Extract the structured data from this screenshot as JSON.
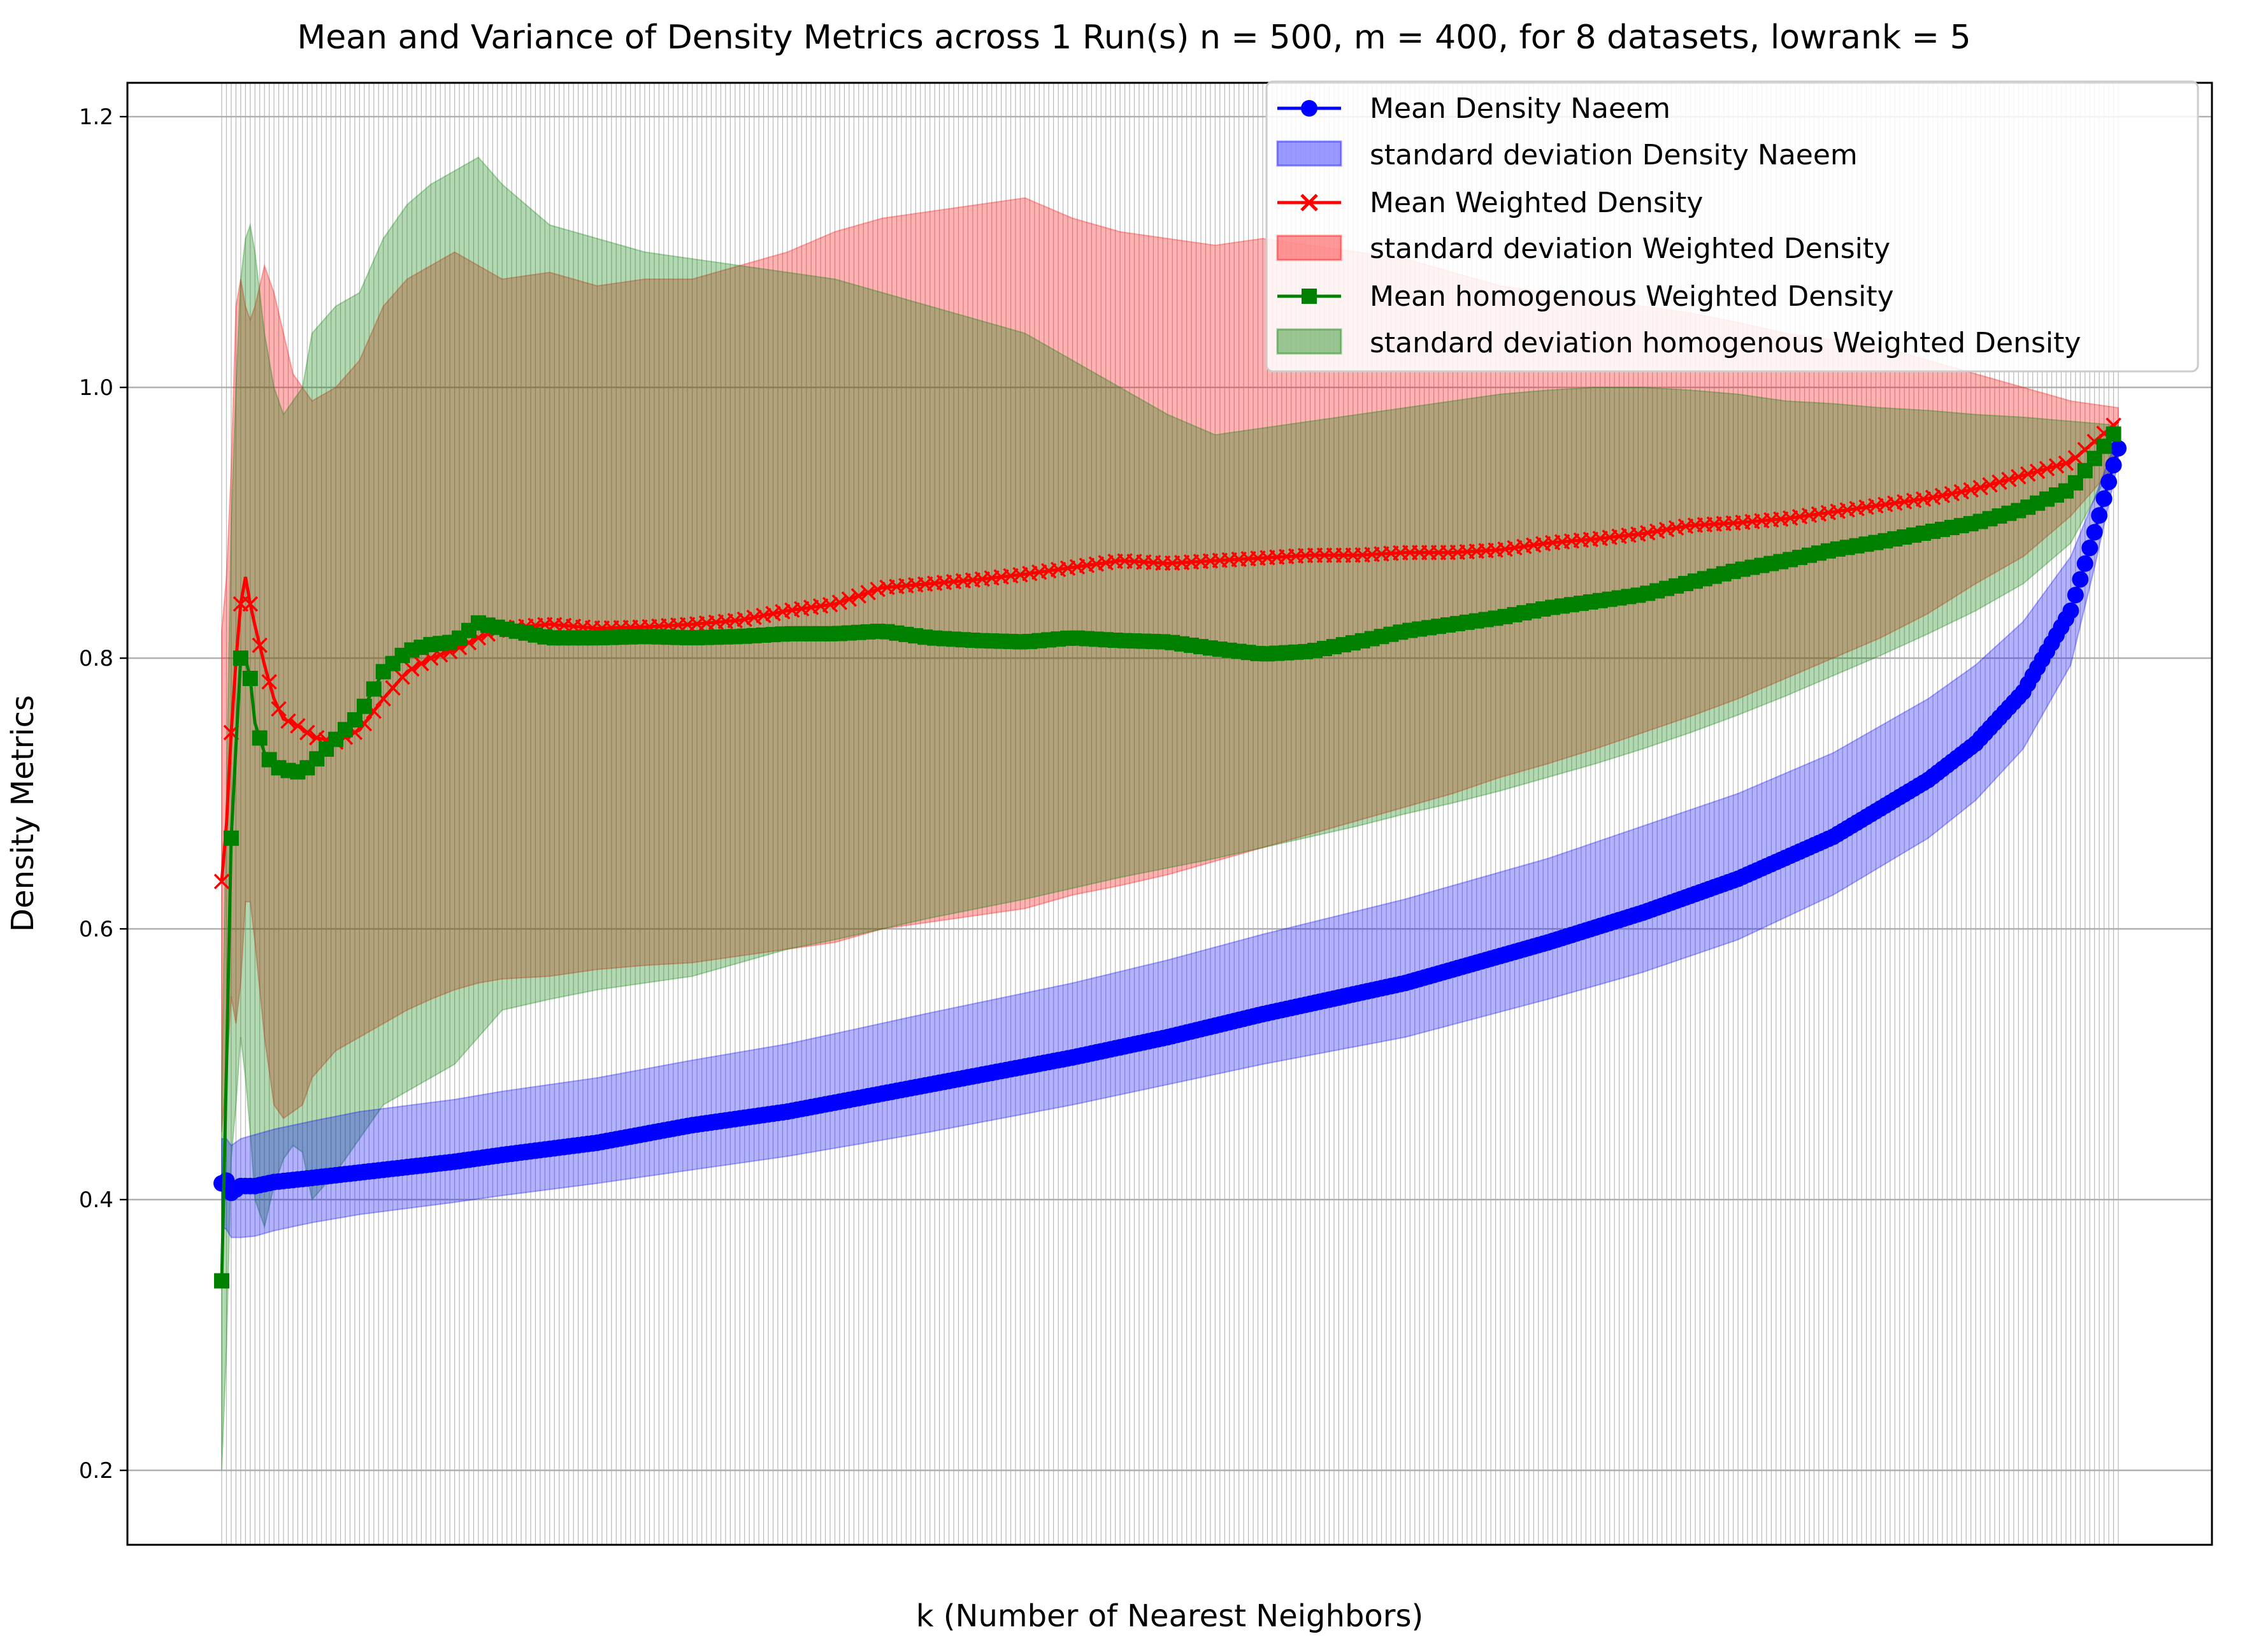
{
  "chart_data": {
    "type": "line",
    "title": "Mean and Variance of Density Metrics across 1 Run(s) n  = 500, m  = 400, for 8 datasets, lowrank = 5",
    "xlabel": "k (Number of Nearest Neighbors)",
    "ylabel": "Density Metrics",
    "xlim": [
      1,
      400
    ],
    "ylim": [
      0.145,
      1.225
    ],
    "yticks": [
      0.2,
      0.4,
      0.6,
      0.8,
      1.0,
      1.2
    ],
    "ytick_labels": [
      "0.2",
      "0.4",
      "0.6",
      "0.8",
      "1.0",
      "1.2"
    ],
    "grid": true,
    "legend_position": "top-right",
    "series": [
      {
        "name": "Mean Density Naeem",
        "color": "#0000ff",
        "marker": "circle",
        "x": [
          1,
          2,
          3,
          5,
          8,
          12,
          20,
          30,
          50,
          60,
          80,
          100,
          120,
          150,
          180,
          200,
          220,
          250,
          280,
          300,
          320,
          340,
          360,
          370,
          380,
          390,
          395,
          400
        ],
        "values": [
          0.412,
          0.414,
          0.405,
          0.41,
          0.41,
          0.413,
          0.416,
          0.42,
          0.428,
          0.433,
          0.442,
          0.455,
          0.465,
          0.485,
          0.505,
          0.52,
          0.537,
          0.56,
          0.59,
          0.612,
          0.637,
          0.668,
          0.71,
          0.737,
          0.775,
          0.835,
          0.893,
          0.955
        ],
        "std_name": "standard deviation Density Naeem",
        "std_color": "#0000ff",
        "upper": [
          0.445,
          0.445,
          0.44,
          0.445,
          0.448,
          0.452,
          0.458,
          0.465,
          0.474,
          0.48,
          0.49,
          0.503,
          0.515,
          0.538,
          0.56,
          0.577,
          0.596,
          0.622,
          0.652,
          0.676,
          0.7,
          0.73,
          0.77,
          0.795,
          0.827,
          0.875,
          0.918,
          0.965
        ],
        "lower": [
          0.38,
          0.378,
          0.372,
          0.372,
          0.373,
          0.377,
          0.383,
          0.389,
          0.398,
          0.403,
          0.412,
          0.422,
          0.432,
          0.45,
          0.47,
          0.485,
          0.5,
          0.52,
          0.548,
          0.568,
          0.592,
          0.625,
          0.667,
          0.695,
          0.733,
          0.795,
          0.867,
          0.945
        ]
      },
      {
        "name": "Mean Weighted Density",
        "color": "#ff0000",
        "marker": "x",
        "x": [
          1,
          2,
          3,
          4,
          5,
          6,
          7,
          8,
          10,
          12,
          14,
          16,
          18,
          20,
          25,
          30,
          35,
          40,
          45,
          50,
          55,
          60,
          70,
          80,
          90,
          100,
          110,
          120,
          130,
          140,
          150,
          160,
          170,
          180,
          190,
          200,
          210,
          220,
          230,
          240,
          250,
          260,
          270,
          280,
          290,
          300,
          310,
          320,
          330,
          340,
          350,
          360,
          370,
          380,
          390,
          400
        ],
        "values": [
          0.635,
          0.677,
          0.745,
          0.798,
          0.84,
          0.86,
          0.84,
          0.824,
          0.795,
          0.77,
          0.755,
          0.752,
          0.748,
          0.742,
          0.738,
          0.747,
          0.77,
          0.79,
          0.8,
          0.806,
          0.815,
          0.822,
          0.825,
          0.822,
          0.823,
          0.825,
          0.828,
          0.835,
          0.84,
          0.852,
          0.855,
          0.858,
          0.862,
          0.867,
          0.872,
          0.87,
          0.872,
          0.874,
          0.876,
          0.876,
          0.878,
          0.878,
          0.88,
          0.885,
          0.888,
          0.892,
          0.898,
          0.9,
          0.903,
          0.908,
          0.913,
          0.918,
          0.925,
          0.935,
          0.945,
          0.975
        ],
        "std_name": "standard deviation Weighted Density",
        "std_color": "#ff0000",
        "upper": [
          0.82,
          0.86,
          0.94,
          1.06,
          1.08,
          1.06,
          1.05,
          1.06,
          1.09,
          1.07,
          1.04,
          1.01,
          1.0,
          0.99,
          1.0,
          1.02,
          1.06,
          1.08,
          1.09,
          1.1,
          1.09,
          1.08,
          1.085,
          1.075,
          1.08,
          1.08,
          1.09,
          1.1,
          1.115,
          1.125,
          1.13,
          1.135,
          1.14,
          1.125,
          1.115,
          1.11,
          1.105,
          1.11,
          1.105,
          1.1,
          1.095,
          1.085,
          1.075,
          1.07,
          1.065,
          1.06,
          1.055,
          1.048,
          1.04,
          1.035,
          1.03,
          1.02,
          1.01,
          1.0,
          0.99,
          0.985
        ],
        "lower": [
          0.45,
          0.49,
          0.55,
          0.53,
          0.56,
          0.62,
          0.62,
          0.59,
          0.52,
          0.47,
          0.46,
          0.465,
          0.47,
          0.49,
          0.51,
          0.52,
          0.53,
          0.54,
          0.548,
          0.555,
          0.56,
          0.563,
          0.565,
          0.57,
          0.573,
          0.575,
          0.58,
          0.585,
          0.59,
          0.6,
          0.605,
          0.61,
          0.615,
          0.625,
          0.632,
          0.64,
          0.65,
          0.66,
          0.67,
          0.68,
          0.69,
          0.7,
          0.712,
          0.722,
          0.733,
          0.745,
          0.757,
          0.77,
          0.785,
          0.8,
          0.815,
          0.833,
          0.855,
          0.875,
          0.905,
          0.945
        ]
      },
      {
        "name": "Mean homogenous Weighted Density",
        "color": "#008000",
        "marker": "square",
        "x": [
          1,
          2,
          3,
          4,
          5,
          6,
          7,
          8,
          10,
          12,
          14,
          16,
          18,
          20,
          25,
          30,
          35,
          40,
          45,
          50,
          55,
          60,
          70,
          80,
          90,
          100,
          110,
          120,
          130,
          140,
          150,
          160,
          170,
          180,
          190,
          200,
          210,
          220,
          230,
          240,
          250,
          260,
          270,
          280,
          290,
          300,
          310,
          320,
          330,
          340,
          350,
          360,
          370,
          380,
          390,
          400
        ],
        "values": [
          0.34,
          0.497,
          0.667,
          0.735,
          0.8,
          0.8,
          0.785,
          0.752,
          0.73,
          0.72,
          0.718,
          0.716,
          0.716,
          0.722,
          0.74,
          0.758,
          0.79,
          0.805,
          0.81,
          0.812,
          0.826,
          0.822,
          0.815,
          0.815,
          0.816,
          0.815,
          0.816,
          0.818,
          0.818,
          0.82,
          0.815,
          0.813,
          0.812,
          0.815,
          0.813,
          0.812,
          0.807,
          0.803,
          0.805,
          0.812,
          0.82,
          0.825,
          0.83,
          0.837,
          0.842,
          0.847,
          0.856,
          0.865,
          0.872,
          0.88,
          0.886,
          0.893,
          0.9,
          0.91,
          0.925,
          0.97
        ],
        "std_name": "standard deviation homogenous Weighted Density",
        "std_color": "#008000",
        "upper": [
          0.48,
          0.7,
          0.9,
          1.0,
          1.08,
          1.11,
          1.12,
          1.1,
          1.04,
          1.0,
          0.98,
          0.99,
          1.0,
          1.04,
          1.06,
          1.07,
          1.11,
          1.135,
          1.15,
          1.16,
          1.17,
          1.15,
          1.12,
          1.11,
          1.1,
          1.095,
          1.09,
          1.085,
          1.08,
          1.07,
          1.06,
          1.05,
          1.04,
          1.02,
          1.0,
          0.98,
          0.965,
          0.97,
          0.975,
          0.98,
          0.985,
          0.99,
          0.995,
          0.998,
          1.0,
          1.0,
          0.998,
          0.995,
          0.99,
          0.988,
          0.985,
          0.983,
          0.98,
          0.978,
          0.975,
          0.972
        ],
        "lower": [
          0.2,
          0.29,
          0.43,
          0.47,
          0.52,
          0.49,
          0.45,
          0.4,
          0.38,
          0.41,
          0.43,
          0.44,
          0.435,
          0.4,
          0.42,
          0.445,
          0.47,
          0.48,
          0.49,
          0.5,
          0.52,
          0.54,
          0.548,
          0.555,
          0.56,
          0.565,
          0.575,
          0.585,
          0.592,
          0.6,
          0.608,
          0.615,
          0.622,
          0.63,
          0.638,
          0.645,
          0.652,
          0.66,
          0.668,
          0.676,
          0.685,
          0.693,
          0.702,
          0.712,
          0.722,
          0.733,
          0.745,
          0.758,
          0.772,
          0.787,
          0.802,
          0.818,
          0.835,
          0.855,
          0.885,
          0.95
        ]
      }
    ]
  }
}
